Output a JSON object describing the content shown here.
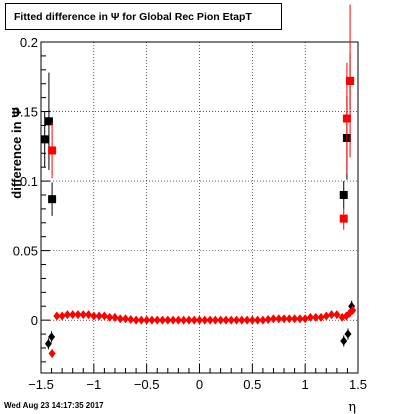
{
  "chart_data": {
    "type": "scatter",
    "title": "Fitted difference in  Ψ  for Global Rec Pion EtapT",
    "xlabel": "η",
    "ylabel": "difference in  Ψ",
    "xlim": [
      -1.5,
      1.5
    ],
    "ylim": [
      -0.038,
      0.2
    ],
    "x_ticks": [
      -1.5,
      -1,
      -0.5,
      0,
      0.5,
      1,
      1.5
    ],
    "x_tick_labels": [
      "−1.5",
      "−1",
      "−0.5",
      "0",
      "0.5",
      "1",
      "1.5"
    ],
    "y_ticks": [
      0,
      0.05,
      0.1,
      0.15,
      0.2
    ],
    "y_tick_labels": [
      "0",
      "0.05",
      "0.1",
      "0.15",
      "0.2"
    ],
    "grid": true,
    "timestamp": "Wed Aug 23 14:17:35 2017",
    "series": [
      {
        "color": "#000000",
        "marker": "square",
        "points": [
          {
            "x": -1.465,
            "y": 0.13,
            "err": 0.02
          },
          {
            "x": -1.425,
            "y": 0.143,
            "err": 0.035
          },
          {
            "x": -1.395,
            "y": 0.087,
            "err": 0.012
          },
          {
            "x": 1.365,
            "y": 0.09,
            "err": 0.01
          },
          {
            "x": 1.395,
            "y": 0.131,
            "err": 0.03
          },
          {
            "x": 1.425,
            "y": 0.172,
            "err": 0.02
          }
        ]
      },
      {
        "color": "#000000",
        "marker": "diamond",
        "points": [
          {
            "x": -1.43,
            "y": -0.017,
            "err": 0.004
          },
          {
            "x": -1.4,
            "y": -0.012,
            "err": 0.004
          },
          {
            "x": 1.365,
            "y": -0.015,
            "err": 0.004
          },
          {
            "x": 1.405,
            "y": -0.01,
            "err": 0.004
          },
          {
            "x": 1.44,
            "y": 0.01,
            "err": 0.004
          }
        ]
      },
      {
        "color": "#ff0000",
        "marker": "square",
        "points": [
          {
            "x": -1.395,
            "y": 0.122,
            "err": 0.02
          },
          {
            "x": 1.365,
            "y": 0.073,
            "err": 0.008
          },
          {
            "x": 1.395,
            "y": 0.145,
            "err": 0.04
          },
          {
            "x": 1.425,
            "y": 0.172,
            "err": 0.055
          }
        ]
      },
      {
        "color": "#ff0000",
        "marker": "diamond",
        "points": [
          {
            "x": -1.395,
            "y": -0.024,
            "err": 0.003
          },
          {
            "x": -1.35,
            "y": 0.003,
            "err": 0.002
          },
          {
            "x": -1.3,
            "y": 0.003,
            "err": 0.002
          },
          {
            "x": -1.25,
            "y": 0.004,
            "err": 0.002
          },
          {
            "x": -1.2,
            "y": 0.004,
            "err": 0.002
          },
          {
            "x": -1.15,
            "y": 0.004,
            "err": 0.002
          },
          {
            "x": -1.1,
            "y": 0.004,
            "err": 0.002
          },
          {
            "x": -1.05,
            "y": 0.004,
            "err": 0.002
          },
          {
            "x": -1.0,
            "y": 0.003,
            "err": 0.002
          },
          {
            "x": -0.95,
            "y": 0.003,
            "err": 0.002
          },
          {
            "x": -0.9,
            "y": 0.003,
            "err": 0.002
          },
          {
            "x": -0.85,
            "y": 0.002,
            "err": 0.002
          },
          {
            "x": -0.8,
            "y": 0.002,
            "err": 0.002
          },
          {
            "x": -0.75,
            "y": 0.001,
            "err": 0.002
          },
          {
            "x": -0.7,
            "y": 0.001,
            "err": 0.002
          },
          {
            "x": -0.65,
            "y": 0.0005,
            "err": 0.002
          },
          {
            "x": -0.6,
            "y": 0.0,
            "err": 0.002
          },
          {
            "x": -0.55,
            "y": 0.0,
            "err": 0.002
          },
          {
            "x": -0.5,
            "y": 0.0,
            "err": 0.002
          },
          {
            "x": -0.45,
            "y": 0.0,
            "err": 0.002
          },
          {
            "x": -0.4,
            "y": 0.0,
            "err": 0.002
          },
          {
            "x": -0.35,
            "y": 0.0,
            "err": 0.002
          },
          {
            "x": -0.3,
            "y": 0.0,
            "err": 0.002
          },
          {
            "x": -0.25,
            "y": 0.0,
            "err": 0.002
          },
          {
            "x": -0.2,
            "y": 0.0,
            "err": 0.002
          },
          {
            "x": -0.15,
            "y": 0.0,
            "err": 0.002
          },
          {
            "x": -0.1,
            "y": 0.0,
            "err": 0.002
          },
          {
            "x": -0.05,
            "y": 0.0,
            "err": 0.002
          },
          {
            "x": 0.0,
            "y": 0.0,
            "err": 0.002
          },
          {
            "x": 0.05,
            "y": 0.0,
            "err": 0.002
          },
          {
            "x": 0.1,
            "y": 0.0,
            "err": 0.002
          },
          {
            "x": 0.15,
            "y": 0.0,
            "err": 0.002
          },
          {
            "x": 0.2,
            "y": 0.0,
            "err": 0.002
          },
          {
            "x": 0.25,
            "y": 0.0,
            "err": 0.002
          },
          {
            "x": 0.3,
            "y": 0.0,
            "err": 0.002
          },
          {
            "x": 0.35,
            "y": 0.0,
            "err": 0.002
          },
          {
            "x": 0.4,
            "y": 0.0,
            "err": 0.002
          },
          {
            "x": 0.45,
            "y": 0.0,
            "err": 0.002
          },
          {
            "x": 0.5,
            "y": 0.0,
            "err": 0.002
          },
          {
            "x": 0.55,
            "y": 0.0,
            "err": 0.002
          },
          {
            "x": 0.6,
            "y": 0.0,
            "err": 0.002
          },
          {
            "x": 0.65,
            "y": 0.0005,
            "err": 0.002
          },
          {
            "x": 0.7,
            "y": 0.001,
            "err": 0.002
          },
          {
            "x": 0.75,
            "y": 0.001,
            "err": 0.002
          },
          {
            "x": 0.8,
            "y": 0.001,
            "err": 0.002
          },
          {
            "x": 0.85,
            "y": 0.001,
            "err": 0.002
          },
          {
            "x": 0.9,
            "y": 0.001,
            "err": 0.002
          },
          {
            "x": 0.95,
            "y": 0.001,
            "err": 0.002
          },
          {
            "x": 1.0,
            "y": 0.001,
            "err": 0.002
          },
          {
            "x": 1.05,
            "y": 0.002,
            "err": 0.002
          },
          {
            "x": 1.1,
            "y": 0.002,
            "err": 0.002
          },
          {
            "x": 1.15,
            "y": 0.002,
            "err": 0.002
          },
          {
            "x": 1.2,
            "y": 0.003,
            "err": 0.002
          },
          {
            "x": 1.25,
            "y": 0.004,
            "err": 0.002
          },
          {
            "x": 1.3,
            "y": 0.004,
            "err": 0.002
          },
          {
            "x": 1.35,
            "y": 0.002,
            "err": 0.002
          },
          {
            "x": 1.39,
            "y": 0.003,
            "err": 0.002
          },
          {
            "x": 1.42,
            "y": 0.005,
            "err": 0.002
          },
          {
            "x": 1.45,
            "y": 0.007,
            "err": 0.002
          }
        ]
      }
    ]
  }
}
